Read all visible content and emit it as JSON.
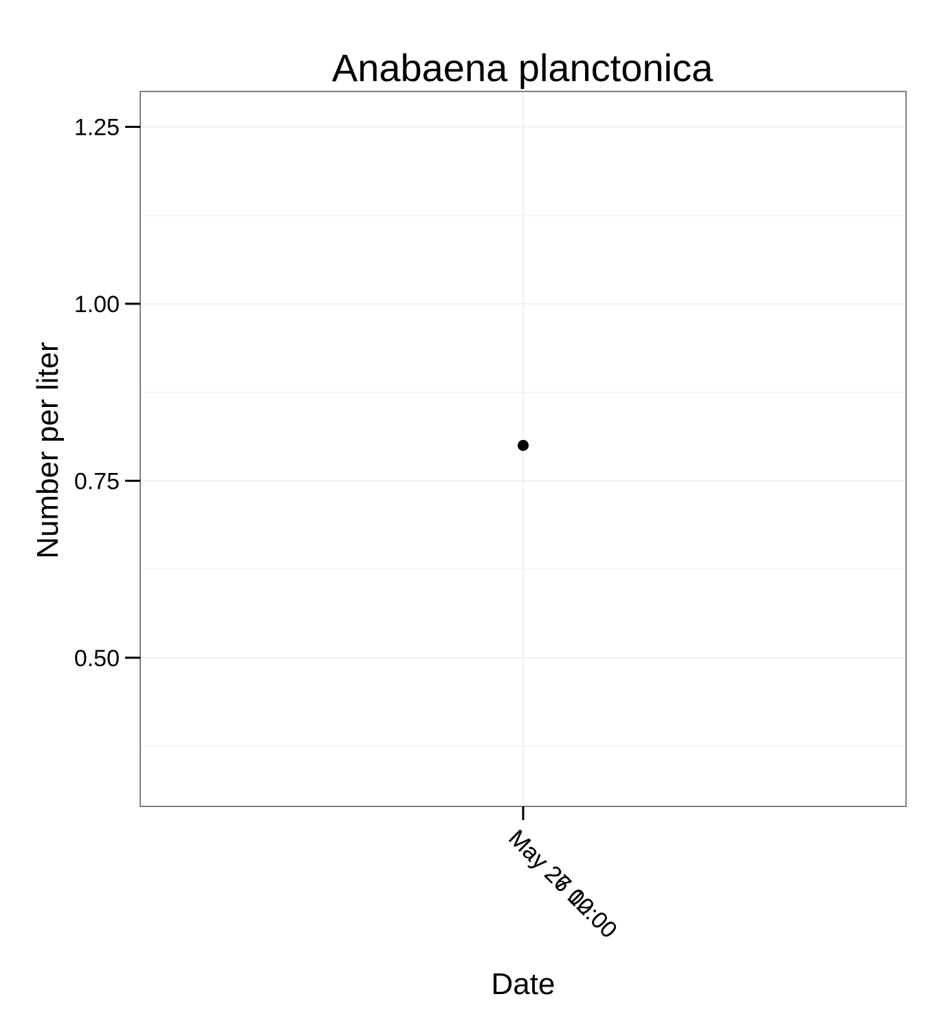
{
  "chart_data": {
    "type": "scatter",
    "title": "Anabaena planctonica",
    "xlabel": "Date",
    "ylabel": "Number per liter",
    "ylim": [
      0.29,
      1.3
    ],
    "y_ticks": [
      "0.50",
      "0.75",
      "1.00",
      "1.25"
    ],
    "x_tick_labels": [
      "May 27 00:00",
      "May 26 12:00"
    ],
    "points": [
      {
        "x": "May 27 00:00",
        "y": 0.8
      }
    ],
    "grid": true,
    "colors": {
      "point": "#000000",
      "panel_border": "#7f7f7f",
      "grid_major": "#ebebeb",
      "grid_minor": "#f5f5f5"
    }
  }
}
